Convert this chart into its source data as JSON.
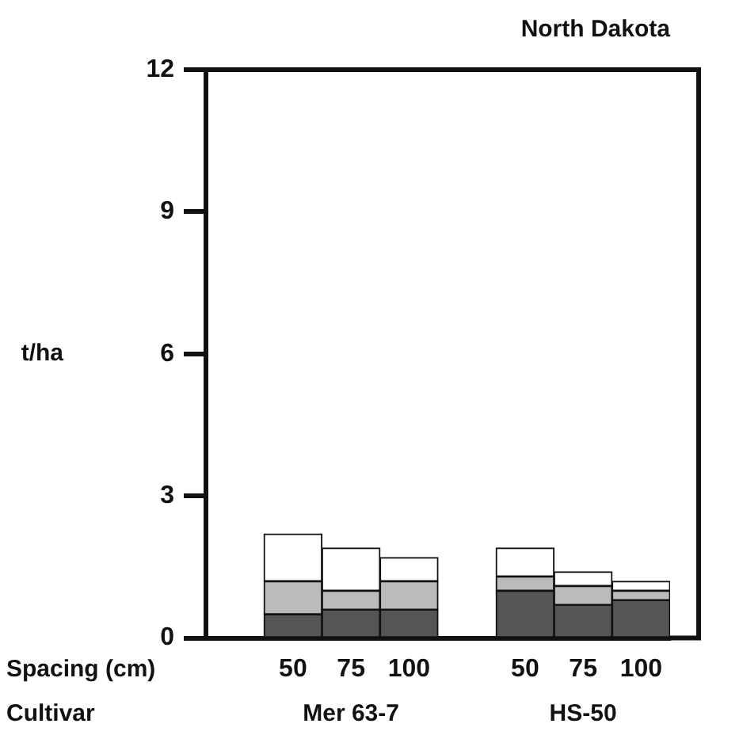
{
  "chart_data": {
    "type": "bar",
    "title": "North Dakota",
    "ylabel": "t/ha",
    "xlabel": "Spacing (cm)",
    "categories": [
      null,
      "50",
      "75",
      "100",
      null,
      "50",
      "75",
      "100"
    ],
    "stacked": true,
    "legend": false,
    "series": [
      {
        "color": "#555555",
        "values": [
          null,
          0.5,
          0.6,
          0.6,
          null,
          1.0,
          0.7,
          0.8
        ]
      },
      {
        "color": "#bbbbbb",
        "values": [
          null,
          0.7,
          0.4,
          0.6,
          null,
          0.3,
          0.4,
          0.2
        ]
      },
      {
        "color": "#ffffff",
        "values": [
          null,
          1.0,
          0.9,
          0.5,
          null,
          0.6,
          0.3,
          0.2
        ]
      }
    ],
    "ylim": [
      0,
      12
    ],
    "yticks": [
      0,
      3,
      6,
      9,
      12
    ],
    "annotations": [
      "Cultivar",
      "Mer 63-7",
      "HS-50"
    ]
  }
}
